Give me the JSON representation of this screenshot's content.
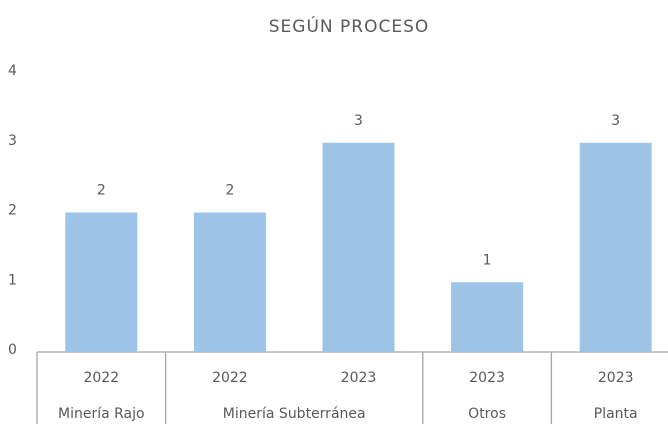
{
  "chart_data": {
    "type": "bar",
    "title": "SEGÚN PROCESO",
    "groups": [
      {
        "name": "Minería Rajo",
        "categories": [
          "2022"
        ],
        "values": [
          2
        ]
      },
      {
        "name": "Minería Subterránea",
        "categories": [
          "2022",
          "2023"
        ],
        "values": [
          2,
          3
        ]
      },
      {
        "name": "Otros",
        "categories": [
          "2023"
        ],
        "values": [
          1
        ]
      },
      {
        "name": "Planta",
        "categories": [
          "2023"
        ],
        "values": [
          3
        ]
      }
    ],
    "color": "#9dc3e6",
    "ylim": [
      0,
      4
    ],
    "yticks": [
      0,
      1,
      2,
      3,
      4
    ],
    "grid": false
  }
}
